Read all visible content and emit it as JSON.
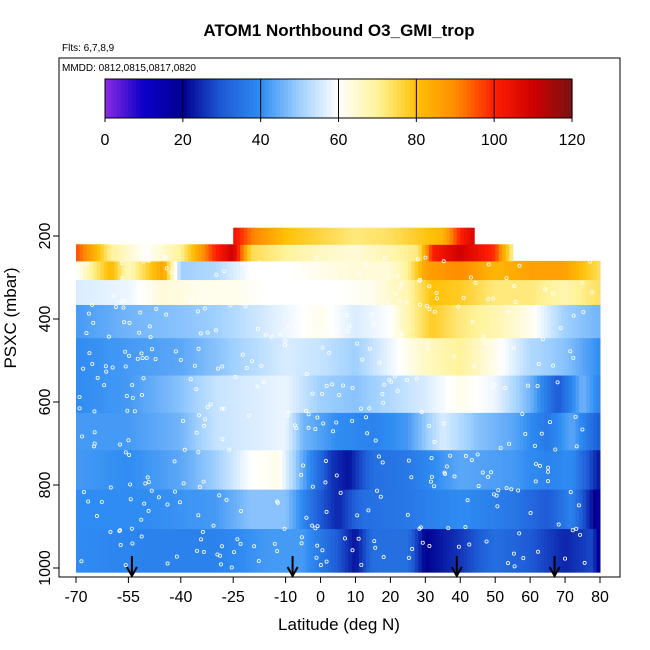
{
  "chart_data": {
    "type": "heatmap",
    "title": "ATOM1 Northbound O3_GMI_trop",
    "notes": [
      "Flts: 6,7,8,9",
      "MMDD: 0812,0815,0817,0820"
    ],
    "xlabel": "Latitude (deg N)",
    "ylabel": "PSXC (mbar)",
    "xlim": [
      -70,
      85
    ],
    "ylim": [
      1010,
      140
    ],
    "xticks": [
      -70,
      -55,
      -40,
      -25,
      -10,
      0,
      10,
      20,
      30,
      40,
      50,
      60,
      70,
      80
    ],
    "yticks": [
      200,
      400,
      600,
      800,
      1000
    ],
    "colorbar": {
      "min": 0,
      "max": 120,
      "ticks": [
        0,
        20,
        40,
        60,
        80,
        100,
        120
      ],
      "stops": [
        [
          0,
          "#8a2be2"
        ],
        [
          10,
          "#0a00c8"
        ],
        [
          20,
          "#000090"
        ],
        [
          30,
          "#1e5bd6"
        ],
        [
          40,
          "#2f8cf2"
        ],
        [
          50,
          "#9fd0ff"
        ],
        [
          60,
          "#ffffff"
        ],
        [
          70,
          "#fff39a"
        ],
        [
          80,
          "#ffc107"
        ],
        [
          90,
          "#ff8c00"
        ],
        [
          100,
          "#ff1e00"
        ],
        [
          110,
          "#d00000"
        ],
        [
          120,
          "#7a1212"
        ]
      ]
    },
    "flight_markers_lat": [
      -54,
      -8,
      39,
      67
    ],
    "layers": [
      {
        "p": 950,
        "vals": [
          [
            -70,
            40
          ],
          [
            -50,
            38
          ],
          [
            -30,
            38
          ],
          [
            -15,
            42
          ],
          [
            -5,
            42
          ],
          [
            5,
            30
          ],
          [
            10,
            22
          ],
          [
            15,
            34
          ],
          [
            25,
            34
          ],
          [
            30,
            20
          ],
          [
            40,
            26
          ],
          [
            50,
            34
          ],
          [
            60,
            30
          ],
          [
            70,
            24
          ],
          [
            78,
            28
          ],
          [
            80,
            14
          ]
        ]
      },
      {
        "p": 860,
        "vals": [
          [
            -70,
            40
          ],
          [
            -50,
            40
          ],
          [
            -30,
            42
          ],
          [
            -20,
            48
          ],
          [
            -10,
            48
          ],
          [
            0,
            30
          ],
          [
            5,
            24
          ],
          [
            12,
            34
          ],
          [
            25,
            36
          ],
          [
            40,
            40
          ],
          [
            55,
            36
          ],
          [
            65,
            30
          ],
          [
            72,
            38
          ],
          [
            80,
            16
          ]
        ]
      },
      {
        "p": 760,
        "vals": [
          [
            -70,
            42
          ],
          [
            -55,
            40
          ],
          [
            -40,
            44
          ],
          [
            -30,
            50
          ],
          [
            -20,
            60
          ],
          [
            -12,
            62
          ],
          [
            -5,
            44
          ],
          [
            3,
            26
          ],
          [
            8,
            22
          ],
          [
            15,
            34
          ],
          [
            25,
            36
          ],
          [
            40,
            44
          ],
          [
            55,
            42
          ],
          [
            65,
            38
          ],
          [
            72,
            40
          ],
          [
            80,
            22
          ]
        ]
      },
      {
        "p": 670,
        "vals": [
          [
            -70,
            42
          ],
          [
            -55,
            42
          ],
          [
            -40,
            46
          ],
          [
            -30,
            54
          ],
          [
            -20,
            56
          ],
          [
            -10,
            58
          ],
          [
            -5,
            46
          ],
          [
            5,
            40
          ],
          [
            15,
            38
          ],
          [
            25,
            42
          ],
          [
            35,
            56
          ],
          [
            45,
            48
          ],
          [
            55,
            44
          ],
          [
            65,
            36
          ],
          [
            72,
            44
          ],
          [
            80,
            30
          ]
        ]
      },
      {
        "p": 580,
        "vals": [
          [
            -70,
            40
          ],
          [
            -55,
            42
          ],
          [
            -40,
            48
          ],
          [
            -30,
            54
          ],
          [
            -20,
            56
          ],
          [
            -10,
            58
          ],
          [
            0,
            50
          ],
          [
            10,
            48
          ],
          [
            20,
            52
          ],
          [
            30,
            56
          ],
          [
            40,
            62
          ],
          [
            50,
            58
          ],
          [
            60,
            46
          ],
          [
            68,
            30
          ],
          [
            75,
            46
          ],
          [
            80,
            38
          ]
        ]
      },
      {
        "p": 490,
        "vals": [
          [
            -70,
            40
          ],
          [
            -55,
            42
          ],
          [
            -40,
            44
          ],
          [
            -30,
            48
          ],
          [
            -20,
            52
          ],
          [
            -10,
            56
          ],
          [
            0,
            54
          ],
          [
            10,
            50
          ],
          [
            20,
            58
          ],
          [
            30,
            66
          ],
          [
            40,
            70
          ],
          [
            50,
            62
          ],
          [
            60,
            52
          ],
          [
            70,
            48
          ],
          [
            80,
            40
          ]
        ]
      },
      {
        "p": 400,
        "vals": [
          [
            -70,
            42
          ],
          [
            -55,
            46
          ],
          [
            -40,
            48
          ],
          [
            -30,
            50
          ],
          [
            -20,
            54
          ],
          [
            -10,
            58
          ],
          [
            0,
            62
          ],
          [
            10,
            56
          ],
          [
            20,
            60
          ],
          [
            25,
            68
          ],
          [
            32,
            78
          ],
          [
            40,
            72
          ],
          [
            50,
            68
          ],
          [
            60,
            62
          ],
          [
            70,
            50
          ],
          [
            80,
            46
          ]
        ]
      },
      {
        "p": 330,
        "vals": [
          [
            -70,
            56
          ],
          [
            -55,
            58
          ],
          [
            -45,
            64
          ],
          [
            -35,
            62
          ],
          [
            -25,
            62
          ],
          [
            -15,
            60
          ],
          [
            -5,
            60
          ],
          [
            5,
            60
          ],
          [
            15,
            62
          ],
          [
            25,
            68
          ],
          [
            32,
            80
          ],
          [
            40,
            78
          ],
          [
            50,
            72
          ],
          [
            60,
            72
          ],
          [
            70,
            68
          ],
          [
            80,
            74
          ]
        ]
      },
      {
        "p": 280,
        "vals": [
          [
            -70,
            60
          ],
          [
            -60,
            82
          ],
          [
            -55,
            66
          ],
          [
            -45,
            86
          ],
          [
            -40,
            50
          ],
          [
            -30,
            52
          ],
          [
            -20,
            60
          ],
          [
            -10,
            60
          ],
          [
            0,
            62
          ],
          [
            10,
            64
          ],
          [
            20,
            64
          ],
          [
            25,
            70
          ],
          [
            30,
            86
          ],
          [
            40,
            90
          ],
          [
            50,
            82
          ],
          [
            60,
            86
          ],
          [
            70,
            86
          ],
          [
            80,
            74
          ]
        ]
      },
      {
        "p": 240,
        "vals": [
          [
            -70,
            96
          ],
          [
            -65,
            84
          ],
          [
            -60,
            70
          ],
          [
            -50,
            60
          ],
          [
            -40,
            70
          ],
          [
            -30,
            100
          ],
          [
            -25,
            110
          ],
          [
            -20,
            75
          ],
          [
            -10,
            70
          ],
          [
            0,
            66
          ],
          [
            10,
            64
          ],
          [
            20,
            68
          ],
          [
            28,
            72
          ],
          [
            32,
            100
          ],
          [
            40,
            110
          ],
          [
            50,
            98
          ],
          [
            55,
            70
          ]
        ]
      },
      {
        "p": 200,
        "vals": [
          [
            -25,
            104
          ],
          [
            -20,
            92
          ],
          [
            -10,
            80
          ],
          [
            0,
            76
          ],
          [
            10,
            72
          ],
          [
            20,
            74
          ],
          [
            28,
            78
          ],
          [
            35,
            82
          ],
          [
            40,
            100
          ],
          [
            44,
            108
          ]
        ]
      }
    ]
  }
}
